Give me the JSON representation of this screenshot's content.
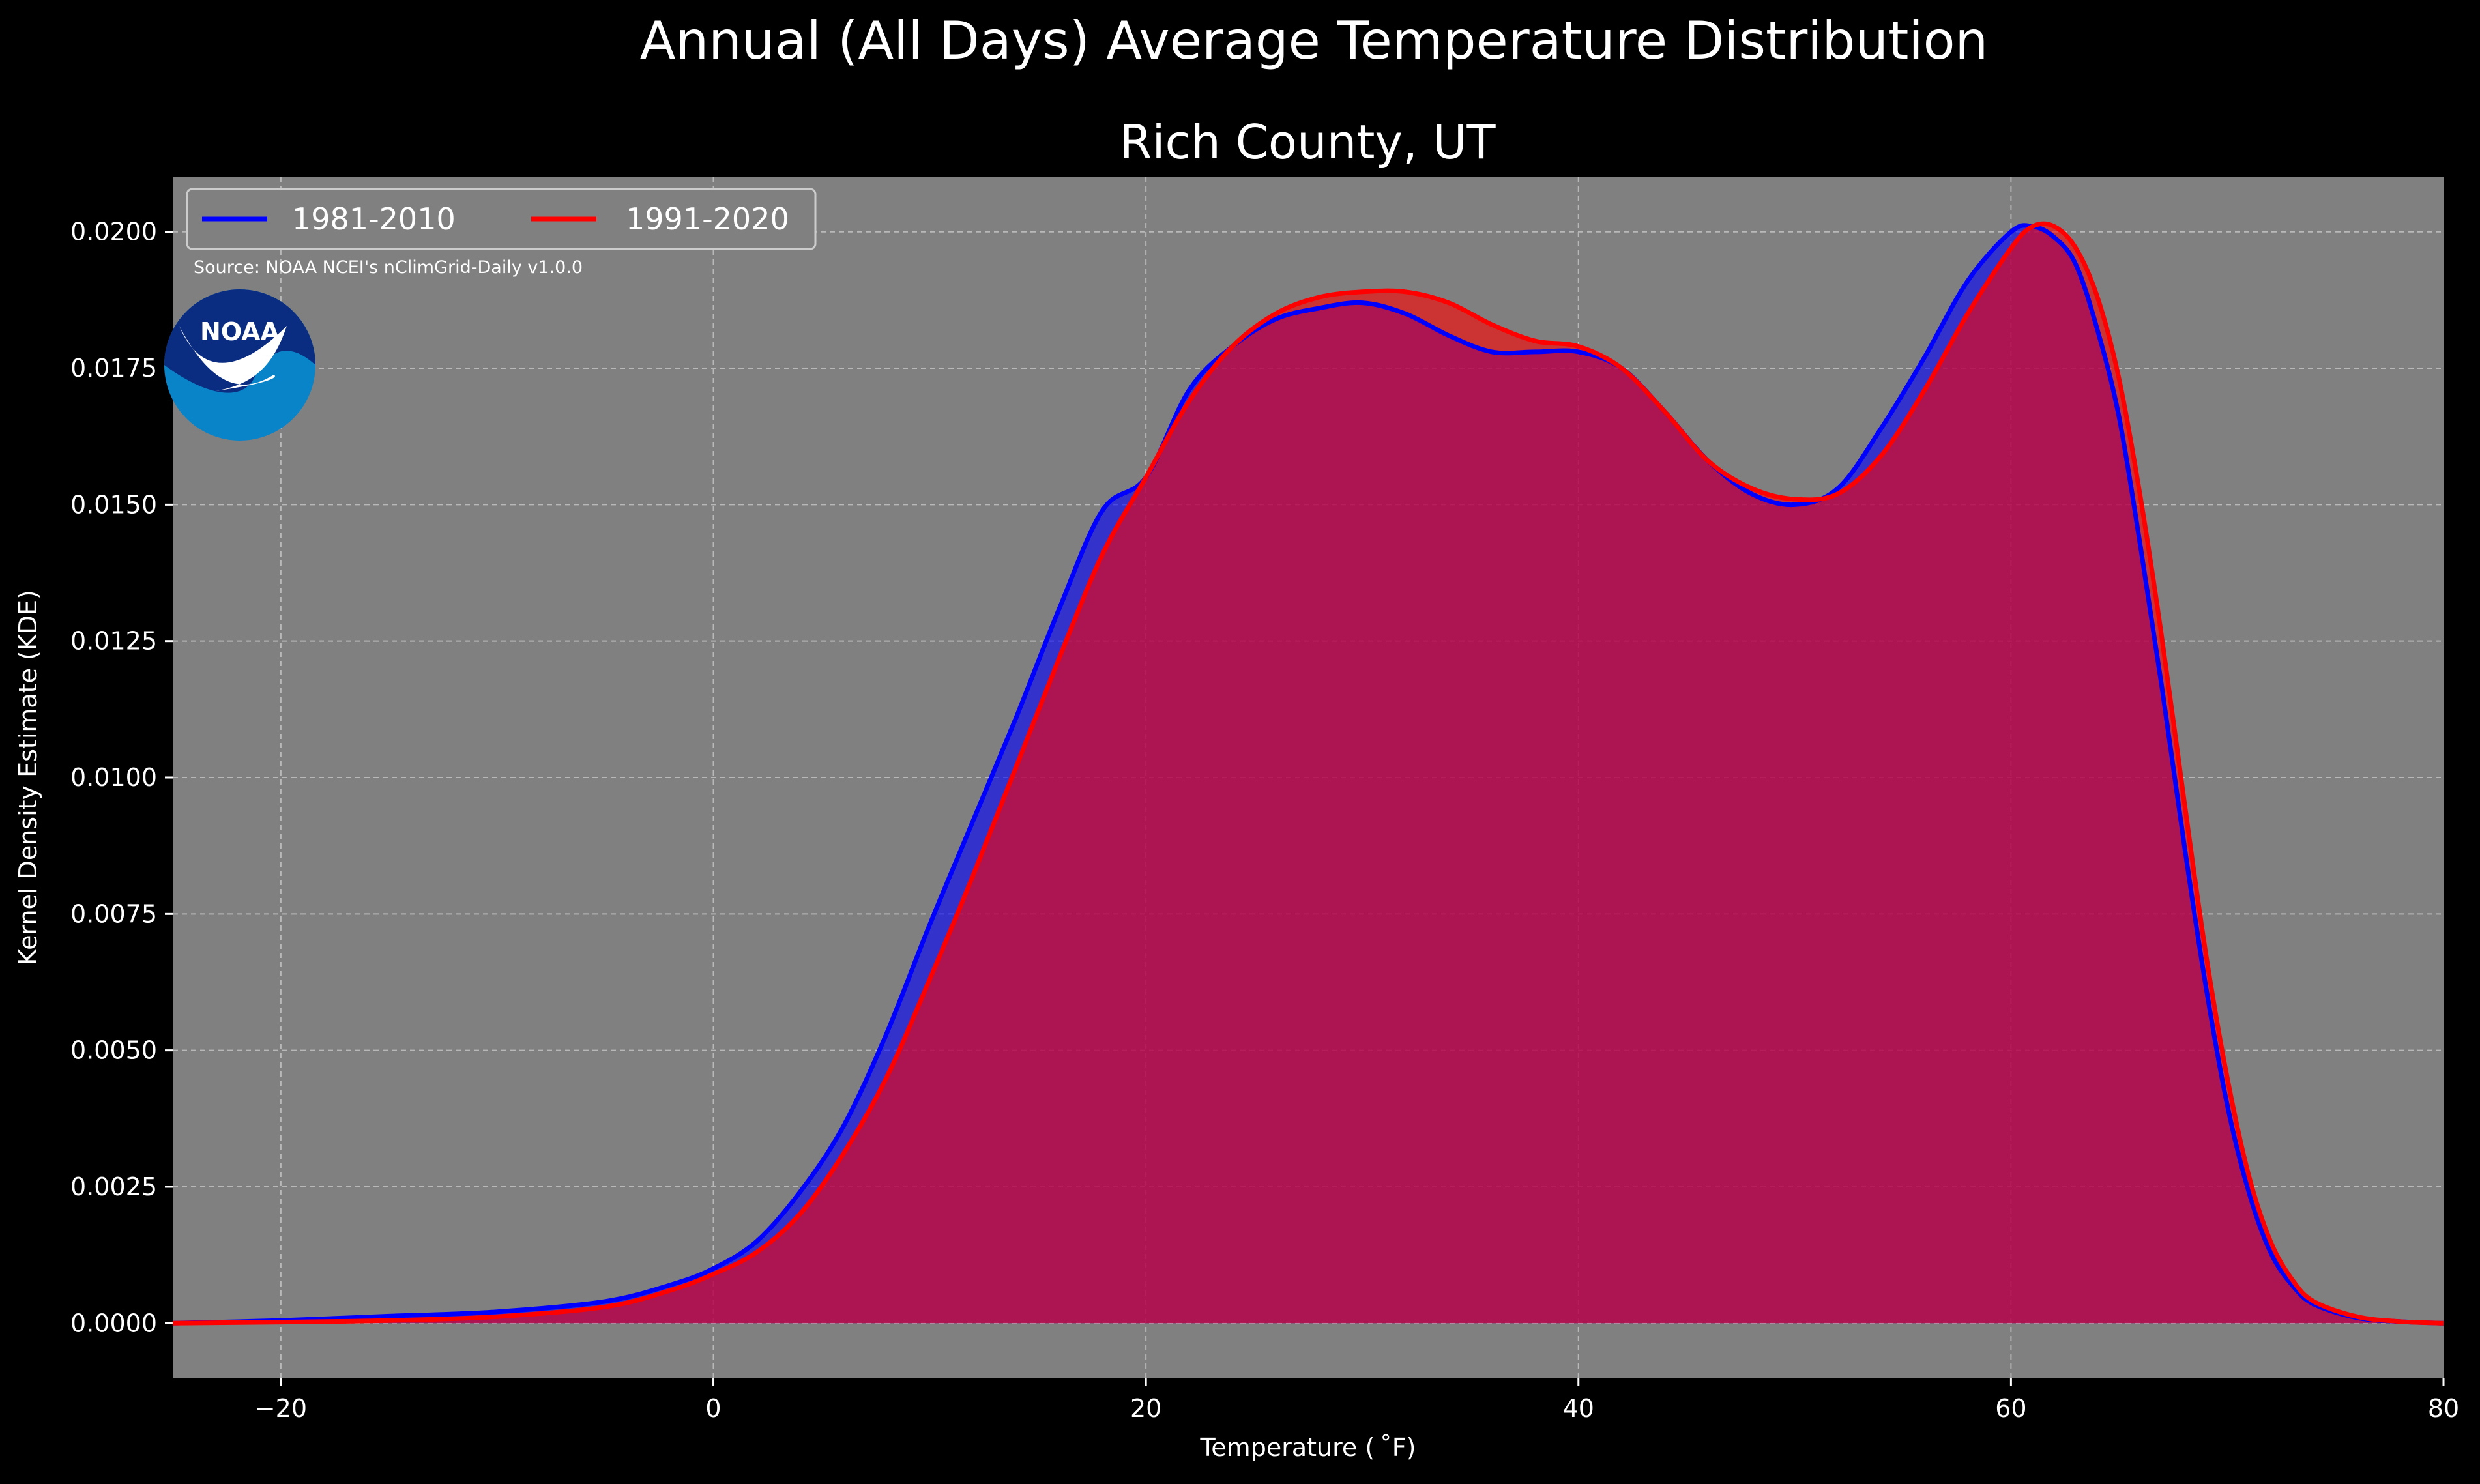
{
  "chart_data": {
    "type": "area",
    "suptitle": "Annual (All Days) Average Temperature Distribution",
    "title": "Rich County, UT",
    "xlabel": "Temperature ($^\\circ$F)",
    "xlabel_display": "Temperature ( ˚F)",
    "ylabel": "Kernel Density Estimate (KDE)",
    "xlim": [
      -25,
      80
    ],
    "ylim": [
      -0.001,
      0.021
    ],
    "xticks": [
      -20,
      0,
      20,
      40,
      60,
      80
    ],
    "xtick_labels": [
      "−20",
      "0",
      "20",
      "40",
      "60",
      "80"
    ],
    "yticks": [
      0,
      0.0025,
      0.005,
      0.0075,
      0.01,
      0.0125,
      0.015,
      0.0175,
      0.02
    ],
    "ytick_labels": [
      "0.0000",
      "0.0025",
      "0.0050",
      "0.0075",
      "0.0100",
      "0.0125",
      "0.0150",
      "0.0175",
      "0.0200"
    ],
    "grid": true,
    "legend_placement": "top-left",
    "source_note": "Source: NOAA NCEI's nClimGrid-Daily v1.0.0",
    "logo_text": "NOAA",
    "series": [
      {
        "name": "1981-2010",
        "color": "#0000ff",
        "x": [
          -25,
          -20,
          -15,
          -10,
          -5,
          -2,
          0,
          2,
          4,
          6,
          8,
          10,
          12,
          14,
          16,
          18,
          20,
          22,
          24,
          26,
          28,
          30,
          32,
          34,
          36,
          38,
          40,
          42,
          44,
          46,
          48,
          50,
          52,
          54,
          56,
          58,
          60,
          61,
          62,
          63,
          64,
          65,
          66,
          67,
          68,
          69,
          70,
          71,
          72,
          73,
          74,
          76,
          78,
          80
        ],
        "y": [
          0.0,
          5e-05,
          0.00013,
          0.00021,
          0.0004,
          0.0007,
          0.001,
          0.0015,
          0.0024,
          0.0036,
          0.0053,
          0.0073,
          0.0092,
          0.0111,
          0.0131,
          0.0149,
          0.0155,
          0.0171,
          0.0179,
          0.0184,
          0.0186,
          0.0187,
          0.0185,
          0.0181,
          0.0178,
          0.0178,
          0.0178,
          0.0175,
          0.0167,
          0.0158,
          0.0152,
          0.015,
          0.0153,
          0.0164,
          0.0177,
          0.0191,
          0.02,
          0.0201,
          0.0199,
          0.0194,
          0.0182,
          0.0166,
          0.0142,
          0.0116,
          0.0088,
          0.0062,
          0.004,
          0.0024,
          0.0013,
          0.0007,
          0.00035,
          0.0001,
          3e-05,
          0.0
        ]
      },
      {
        "name": "1991-2020",
        "color": "#ff0000",
        "x": [
          -25,
          -20,
          -15,
          -10,
          -5,
          -2,
          0,
          2,
          4,
          6,
          8,
          10,
          12,
          14,
          16,
          18,
          20,
          22,
          24,
          26,
          28,
          30,
          32,
          34,
          36,
          38,
          40,
          42,
          44,
          46,
          48,
          50,
          52,
          54,
          56,
          58,
          60,
          61,
          62,
          63,
          64,
          65,
          66,
          67,
          68,
          69,
          70,
          71,
          72,
          73,
          74,
          76,
          78,
          80
        ],
        "y": [
          0.0,
          2e-05,
          5e-05,
          0.00012,
          0.0003,
          0.0006,
          0.0009,
          0.0013,
          0.002,
          0.0031,
          0.0045,
          0.0063,
          0.0082,
          0.0102,
          0.0122,
          0.0141,
          0.0155,
          0.0169,
          0.0179,
          0.0185,
          0.0188,
          0.0189,
          0.0189,
          0.0187,
          0.0183,
          0.018,
          0.0179,
          0.0175,
          0.0167,
          0.0158,
          0.0153,
          0.0151,
          0.0152,
          0.0159,
          0.0171,
          0.0185,
          0.0197,
          0.0201,
          0.0201,
          0.0197,
          0.0188,
          0.0173,
          0.0151,
          0.0125,
          0.0096,
          0.0068,
          0.0045,
          0.0027,
          0.0015,
          0.0008,
          0.0004,
          0.00012,
          3e-05,
          0.0
        ]
      }
    ]
  }
}
